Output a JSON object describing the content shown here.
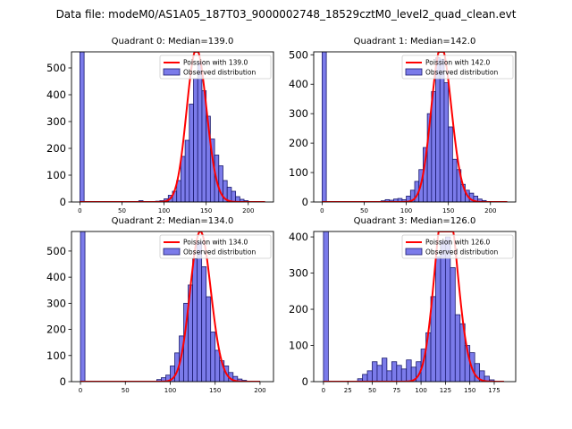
{
  "suptitle": "Data file: modeM0/AS1A05_187T03_9000002748_18529cztM0_level2_quad_clean.evt",
  "colors": {
    "bar_fill": "#7b7bea",
    "bar_edge": "#1a1a6e",
    "fit_line": "#ff0000"
  },
  "chart_data": [
    {
      "type": "bar",
      "title": "Quadrant 0: Median=139.0",
      "bin_width": 5,
      "xlim": [
        -10,
        230
      ],
      "ylim": [
        0,
        560
      ],
      "xticks": [
        0,
        50,
        100,
        150,
        200
      ],
      "yticks": [
        0,
        100,
        200,
        300,
        400,
        500
      ],
      "bins": [
        [
          0,
          560
        ],
        [
          70,
          5
        ],
        [
          90,
          3
        ],
        [
          95,
          5
        ],
        [
          100,
          12
        ],
        [
          105,
          25
        ],
        [
          110,
          40
        ],
        [
          115,
          80
        ],
        [
          120,
          170
        ],
        [
          125,
          230
        ],
        [
          130,
          365
        ],
        [
          135,
          460
        ],
        [
          140,
          520
        ],
        [
          145,
          415
        ],
        [
          150,
          320
        ],
        [
          155,
          235
        ],
        [
          160,
          175
        ],
        [
          165,
          135
        ],
        [
          170,
          80
        ],
        [
          175,
          55
        ],
        [
          180,
          40
        ],
        [
          185,
          20
        ],
        [
          190,
          10
        ],
        [
          195,
          5
        ]
      ],
      "poisson": {
        "mu": 139.0,
        "xrange": [
          0,
          220
        ]
      },
      "legend": {
        "fit": "Poission with 139.0",
        "observed": "Observed distribution",
        "position": "upper right"
      }
    },
    {
      "type": "bar",
      "title": "Quadrant 1: Median=142.0",
      "bin_width": 5,
      "xlim": [
        -10,
        230
      ],
      "ylim": [
        0,
        510
      ],
      "xticks": [
        0,
        50,
        100,
        150,
        200
      ],
      "yticks": [
        0,
        100,
        200,
        300,
        400,
        500
      ],
      "bins": [
        [
          0,
          510
        ],
        [
          70,
          4
        ],
        [
          75,
          8
        ],
        [
          80,
          6
        ],
        [
          85,
          10
        ],
        [
          90,
          12
        ],
        [
          95,
          8
        ],
        [
          100,
          20
        ],
        [
          105,
          40
        ],
        [
          110,
          70
        ],
        [
          115,
          110
        ],
        [
          120,
          185
        ],
        [
          125,
          300
        ],
        [
          130,
          375
        ],
        [
          135,
          490
        ],
        [
          140,
          485
        ],
        [
          145,
          405
        ],
        [
          150,
          255
        ],
        [
          155,
          145
        ],
        [
          160,
          110
        ],
        [
          165,
          60
        ],
        [
          170,
          40
        ],
        [
          175,
          30
        ],
        [
          180,
          20
        ],
        [
          185,
          10
        ],
        [
          190,
          5
        ]
      ],
      "poisson": {
        "mu": 142.0,
        "xrange": [
          0,
          220
        ]
      },
      "legend": {
        "fit": "Poission with 142.0",
        "observed": "Observed distribution",
        "position": "upper right"
      }
    },
    {
      "type": "bar",
      "title": "Quadrant 2: Median=134.0",
      "bin_width": 5,
      "xlim": [
        -10,
        215
      ],
      "ylim": [
        0,
        575
      ],
      "xticks": [
        0,
        50,
        100,
        150,
        200
      ],
      "yticks": [
        0,
        100,
        200,
        300,
        400,
        500
      ],
      "bins": [
        [
          0,
          575
        ],
        [
          85,
          8
        ],
        [
          90,
          15
        ],
        [
          95,
          25
        ],
        [
          100,
          60
        ],
        [
          105,
          110
        ],
        [
          110,
          175
        ],
        [
          115,
          300
        ],
        [
          120,
          370
        ],
        [
          125,
          470
        ],
        [
          130,
          535
        ],
        [
          135,
          440
        ],
        [
          140,
          325
        ],
        [
          145,
          190
        ],
        [
          150,
          120
        ],
        [
          155,
          80
        ],
        [
          160,
          60
        ],
        [
          165,
          35
        ],
        [
          170,
          20
        ],
        [
          175,
          10
        ],
        [
          180,
          5
        ]
      ],
      "poisson": {
        "mu": 134.0,
        "xrange": [
          0,
          200
        ]
      },
      "legend": {
        "fit": "Poission with 134.0",
        "observed": "Observed distribution",
        "position": "upper right"
      }
    },
    {
      "type": "bar",
      "title": "Quadrant 3: Median=126.0",
      "bin_width": 5,
      "xlim": [
        -10,
        197
      ],
      "ylim": [
        0,
        415
      ],
      "xticks": [
        0,
        25,
        50,
        75,
        100,
        125,
        150,
        175
      ],
      "yticks": [
        0,
        100,
        200,
        300,
        400
      ],
      "bins": [
        [
          0,
          415
        ],
        [
          35,
          8
        ],
        [
          40,
          20
        ],
        [
          45,
          30
        ],
        [
          50,
          55
        ],
        [
          55,
          45
        ],
        [
          60,
          65
        ],
        [
          65,
          30
        ],
        [
          70,
          55
        ],
        [
          75,
          45
        ],
        [
          80,
          35
        ],
        [
          85,
          60
        ],
        [
          90,
          40
        ],
        [
          95,
          55
        ],
        [
          100,
          90
        ],
        [
          105,
          135
        ],
        [
          110,
          235
        ],
        [
          115,
          345
        ],
        [
          120,
          390
        ],
        [
          125,
          400
        ],
        [
          130,
          315
        ],
        [
          135,
          185
        ],
        [
          140,
          160
        ],
        [
          145,
          100
        ],
        [
          150,
          80
        ],
        [
          155,
          50
        ],
        [
          160,
          30
        ],
        [
          165,
          15
        ],
        [
          170,
          5
        ]
      ],
      "poisson": {
        "mu": 126.0,
        "xrange": [
          0,
          185
        ]
      },
      "legend": {
        "fit": "Poission with 126.0",
        "observed": "Observed distribution",
        "position": "upper right"
      }
    }
  ]
}
